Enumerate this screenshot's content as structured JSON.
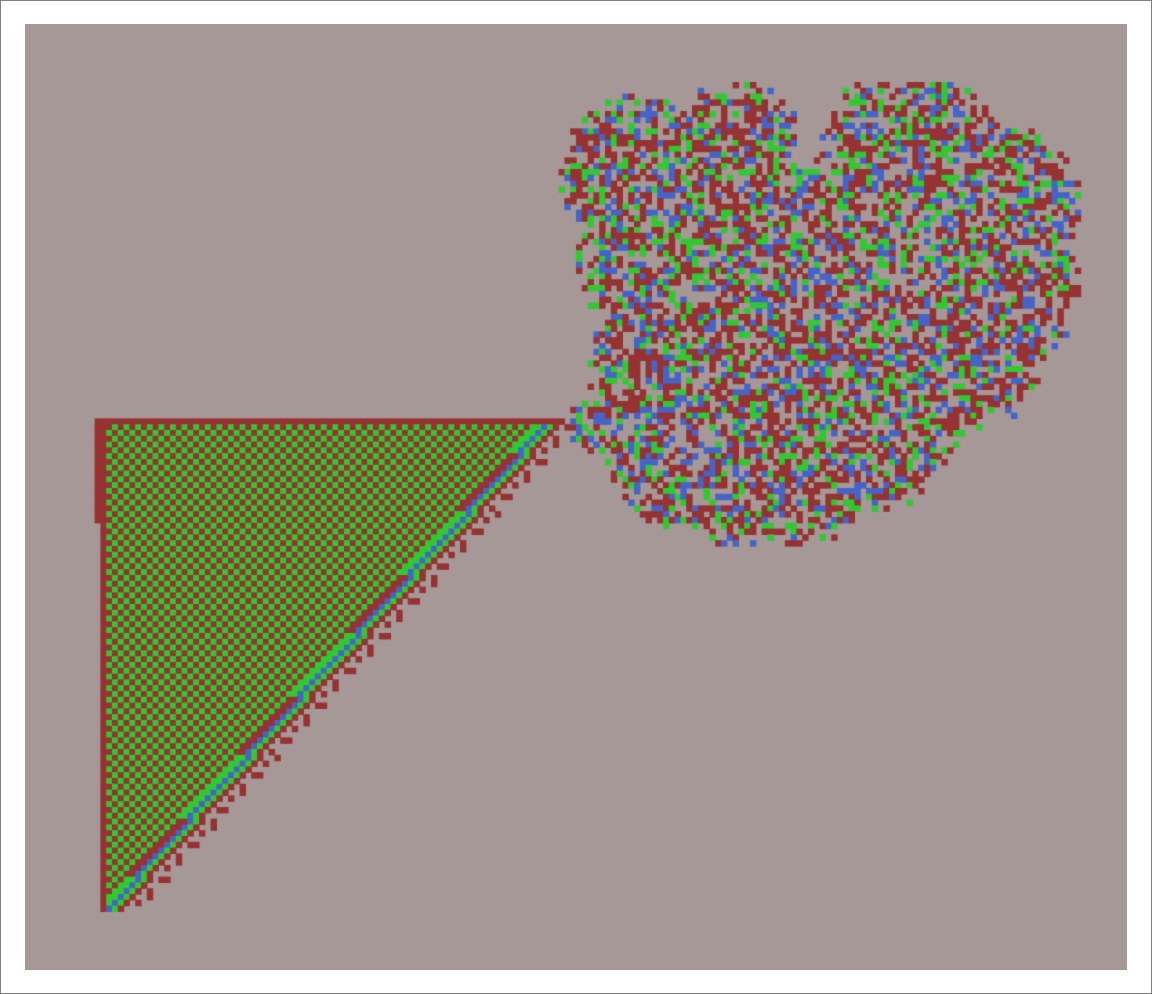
{
  "colors": {
    "page_background": "#ffffff",
    "frame_border": "#808080",
    "grid_background": "#a59896",
    "state_red": "#963232",
    "state_green": "#32c832",
    "state_blue": "#4664c8"
  },
  "automaton": {
    "states": [
      "background",
      "red",
      "green",
      "blue"
    ],
    "structures": [
      "checkerboard-triangle",
      "diagonal-striped-edge",
      "chaotic-cloud"
    ]
  }
}
